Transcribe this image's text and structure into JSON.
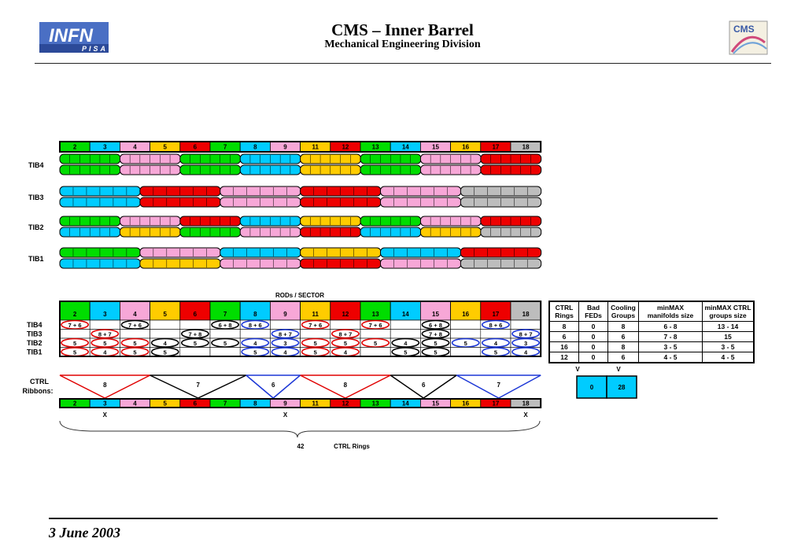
{
  "header": {
    "title": "CMS – Inner Barrel",
    "subtitle": "Mechanical Engineering Division",
    "infn_logo_text": "INFN",
    "infn_logo_sub": "PISA",
    "cms_logo_text": "CMS"
  },
  "footer": {
    "date": "3 June 2003"
  },
  "colors": {
    "green": "#00dd00",
    "cyan": "#00ccff",
    "pink": "#f7a7d7",
    "yellow": "#ffcc00",
    "red": "#ee0000",
    "gray": "#bdbdbd",
    "blue_ring": "#1b36d6",
    "red_ring": "#e00000"
  },
  "sectors": [
    "2",
    "3",
    "4",
    "5",
    "6",
    "7",
    "8",
    "9",
    "11",
    "12",
    "13",
    "14",
    "15",
    "16",
    "17",
    "18"
  ],
  "sector_colors": [
    "green",
    "cyan",
    "pink",
    "yellow",
    "red",
    "green",
    "cyan",
    "pink",
    "yellow",
    "red",
    "green",
    "cyan",
    "pink",
    "yellow",
    "red",
    "gray"
  ],
  "layers": {
    "tib4": {
      "label": "TIB4",
      "top": [
        "green",
        "pink",
        "green",
        "cyan",
        "yellow",
        "green",
        "pink",
        "red"
      ],
      "bottom": [
        "green",
        "pink",
        "green",
        "cyan",
        "yellow",
        "green",
        "pink",
        "red"
      ]
    },
    "tib3": {
      "label": "TIB3",
      "top": [
        "cyan",
        "red",
        "pink",
        "red",
        "pink",
        "gray"
      ],
      "bottom": [
        "cyan",
        "red",
        "pink",
        "red",
        "pink",
        "gray"
      ]
    },
    "tib2": {
      "label": "TIB2",
      "top": [
        "green",
        "pink",
        "red",
        "cyan",
        "yellow",
        "green",
        "pink",
        "red"
      ],
      "bottom": [
        "cyan",
        "yellow",
        "green",
        "pink",
        "red",
        "cyan",
        "yellow",
        "gray"
      ]
    },
    "tib1": {
      "label": "TIB1",
      "top": [
        "green",
        "pink",
        "cyan",
        "yellow",
        "cyan",
        "red"
      ],
      "bottom": [
        "cyan",
        "yellow",
        "pink",
        "red",
        "pink",
        "gray"
      ]
    }
  },
  "rods_title": "RODs / SECTOR",
  "rods_table": {
    "rows": [
      {
        "label": "TIB4",
        "cells": [
          "7 + 6",
          "",
          "7 + 6",
          "",
          "",
          "6 + 8",
          "8 + 6",
          "",
          "7 + 6",
          "",
          "7 + 6",
          "",
          "6 + 8",
          "",
          "8 + 6",
          ""
        ],
        "ring": [
          "red",
          "",
          "black",
          "",
          "",
          "black",
          "blue",
          "",
          "red",
          "",
          "red",
          "",
          "black",
          "",
          "blue",
          ""
        ]
      },
      {
        "label": "TIB3",
        "cells": [
          "",
          "8 + 7",
          "",
          "",
          "7 + 8",
          "",
          "",
          "8 + 7",
          "",
          "8 + 7",
          "",
          "",
          "7 + 8",
          "",
          "",
          "8 + 7"
        ],
        "ring": [
          "",
          "red",
          "",
          "",
          "black",
          "",
          "",
          "blue",
          "",
          "red",
          "",
          "",
          "black",
          "",
          "",
          "blue"
        ]
      },
      {
        "label": "TIB2",
        "cells": [
          "5",
          "5",
          "5",
          "4",
          "5",
          "5",
          "4",
          "3",
          "5",
          "5",
          "5",
          "4",
          "5",
          "5",
          "4",
          "3"
        ],
        "ring": [
          "red",
          "red",
          "red",
          "black",
          "black",
          "black",
          "blue",
          "blue",
          "red",
          "red",
          "red",
          "black",
          "black",
          "blue",
          "blue",
          "blue"
        ]
      },
      {
        "label": "TIB1",
        "cells": [
          "5",
          "4",
          "5",
          "5",
          "",
          "",
          "5",
          "4",
          "5",
          "4",
          "",
          "5",
          "5",
          "",
          "5",
          "4"
        ],
        "ring": [
          "red",
          "red",
          "red",
          "black",
          "",
          "",
          "blue",
          "blue",
          "red",
          "red",
          "",
          "black",
          "black",
          "",
          "blue",
          "blue"
        ]
      }
    ]
  },
  "ctrl_label_line1": "CTRL",
  "ctrl_label_line2": "Ribbons:",
  "ribbons": [
    {
      "value": "8",
      "color": "red"
    },
    {
      "value": "7",
      "color": "black"
    },
    {
      "value": "6",
      "color": "blue"
    },
    {
      "value": "8",
      "color": "red"
    },
    {
      "value": "6",
      "color": "black"
    },
    {
      "value": "7",
      "color": "blue"
    }
  ],
  "x_marks": [
    "X",
    "X",
    "X"
  ],
  "total_rings": "42",
  "total_label": "CTRL Rings",
  "summary": {
    "headers": [
      "CTRL Rings",
      "Bad FEDs",
      "Cooling Groups",
      "minMAX manifolds size",
      "minMAX CTRL groups size"
    ],
    "rows": [
      [
        "8",
        "0",
        "8",
        "6 - 8",
        "13 - 14"
      ],
      [
        "6",
        "0",
        "6",
        "7 - 8",
        "15"
      ],
      [
        "16",
        "0",
        "8",
        "3 - 5",
        "3 - 5"
      ],
      [
        "12",
        "0",
        "6",
        "4 - 5",
        "4 - 5"
      ]
    ],
    "v_marks": [
      "V",
      "V"
    ],
    "totals": [
      "0",
      "28"
    ]
  }
}
